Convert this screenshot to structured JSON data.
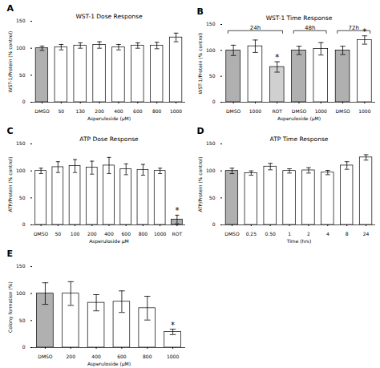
{
  "chart_data": [
    {
      "type": "bar",
      "panel_label": "A",
      "title": "WST-1 Dose Response",
      "x_label": "Asperuloside (μM)",
      "y_label": "WST-1/Protein (% control)",
      "categories": [
        "DMSO",
        "50",
        "130",
        "200",
        "400",
        "600",
        "800",
        "1000"
      ],
      "values": [
        100,
        102,
        105,
        106,
        102,
        105,
        105,
        120
      ],
      "errors": [
        4,
        5,
        5,
        6,
        5,
        5,
        6,
        8
      ],
      "colors": [
        "#b0b0b0",
        "#ffffff",
        "#ffffff",
        "#ffffff",
        "#ffffff",
        "#ffffff",
        "#ffffff",
        "#ffffff"
      ],
      "ylim": [
        0,
        150
      ],
      "yticks": [
        0,
        50,
        100,
        150
      ]
    },
    {
      "type": "bar",
      "panel_label": "B",
      "title": "WST-1 Time Response",
      "x_label": "Asperuloside (μM)",
      "y_label": "WST-1/Protein (% control)",
      "categories": [
        "DMSO",
        "1000",
        "ROT",
        "DMSO",
        "1000",
        "DMSO",
        "1000"
      ],
      "values": [
        100,
        108,
        68,
        100,
        103,
        100,
        120
      ],
      "errors": [
        10,
        12,
        10,
        8,
        12,
        8,
        8
      ],
      "colors": [
        "#b0b0b0",
        "#ffffff",
        "#d0d0d0",
        "#b0b0b0",
        "#ffffff",
        "#b0b0b0",
        "#ffffff"
      ],
      "annotations": [
        {
          "text": "*",
          "index": 2
        },
        {
          "text": "*",
          "index": 6
        }
      ],
      "groups": [
        {
          "label": "24h",
          "span": [
            0,
            2
          ]
        },
        {
          "label": "48h",
          "span": [
            3,
            4
          ]
        },
        {
          "label": "72h",
          "span": [
            5,
            6
          ]
        }
      ],
      "ylim": [
        0,
        150
      ],
      "yticks": [
        0,
        50,
        100,
        150
      ]
    },
    {
      "type": "bar",
      "panel_label": "C",
      "title": "ATP Dose Response",
      "x_label": "Asperuloside μM",
      "y_label": "ATP/Protein (% control)",
      "categories": [
        "DMSO",
        "50",
        "100",
        "200",
        "400",
        "600",
        "800",
        "1000",
        "ROT"
      ],
      "values": [
        100,
        107,
        109,
        106,
        110,
        103,
        102,
        100,
        10
      ],
      "errors": [
        5,
        10,
        12,
        12,
        15,
        10,
        10,
        5,
        8
      ],
      "colors": [
        "#ffffff",
        "#ffffff",
        "#ffffff",
        "#ffffff",
        "#ffffff",
        "#ffffff",
        "#ffffff",
        "#ffffff",
        "#b0b0b0"
      ],
      "annotations": [
        {
          "text": "*",
          "index": 8
        }
      ],
      "ylim": [
        0,
        150
      ],
      "yticks": [
        0,
        50,
        100,
        150
      ]
    },
    {
      "type": "bar",
      "panel_label": "D",
      "title": "ATP Time Response",
      "x_label": "Time (hrs)",
      "y_label": "ATP/Protein (% control)",
      "categories": [
        "DMSO",
        "0.25",
        "0.50",
        "1",
        "2",
        "4",
        "8",
        "24"
      ],
      "values": [
        100,
        96,
        108,
        100,
        101,
        97,
        110,
        125
      ],
      "errors": [
        5,
        4,
        6,
        4,
        5,
        4,
        7,
        5
      ],
      "colors": [
        "#b0b0b0",
        "#ffffff",
        "#ffffff",
        "#ffffff",
        "#ffffff",
        "#ffffff",
        "#ffffff",
        "#ffffff"
      ],
      "ylim": [
        0,
        150
      ],
      "yticks": [
        0,
        50,
        100,
        150
      ]
    },
    {
      "type": "bar",
      "panel_label": "E",
      "x_label": "Asperuloside (μM)",
      "y_label": "Colony formation (%)",
      "categories": [
        "DMSO",
        "200",
        "400",
        "600",
        "800",
        "1000"
      ],
      "values": [
        100,
        100,
        83,
        85,
        73,
        29
      ],
      "errors": [
        20,
        22,
        15,
        20,
        22,
        5
      ],
      "colors": [
        "#b0b0b0",
        "#ffffff",
        "#ffffff",
        "#ffffff",
        "#ffffff",
        "#ffffff"
      ],
      "annotations": [
        {
          "text": "*",
          "index": 5
        }
      ],
      "ylim": [
        0,
        150
      ],
      "yticks": [
        0,
        50,
        100,
        150
      ]
    }
  ]
}
